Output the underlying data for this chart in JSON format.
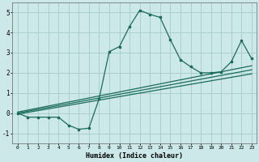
{
  "xlabel": "Humidex (Indice chaleur)",
  "ylabel": "",
  "bg_color": "#cce8e8",
  "grid_color": "#aacece",
  "line_color": "#1a6b5a",
  "xlim": [
    -0.5,
    23.5
  ],
  "ylim": [
    -1.5,
    5.5
  ],
  "xticks": [
    0,
    1,
    2,
    3,
    4,
    5,
    6,
    7,
    8,
    9,
    10,
    11,
    12,
    13,
    14,
    15,
    16,
    17,
    18,
    19,
    20,
    21,
    22,
    23
  ],
  "yticks": [
    -1,
    0,
    1,
    2,
    3,
    4,
    5
  ],
  "main_x": [
    0,
    1,
    2,
    3,
    4,
    5,
    6,
    7,
    8,
    9,
    10,
    11,
    12,
    13,
    14,
    15,
    16,
    17,
    18,
    19,
    20,
    21,
    22,
    23
  ],
  "main_y": [
    0.0,
    -0.2,
    -0.2,
    -0.2,
    -0.2,
    -0.6,
    -0.8,
    -0.75,
    0.7,
    3.05,
    3.3,
    4.3,
    5.1,
    4.9,
    4.75,
    3.65,
    2.65,
    2.3,
    2.0,
    2.0,
    2.05,
    2.55,
    3.6,
    2.7
  ],
  "line2_x": [
    0,
    23
  ],
  "line2_y": [
    0.05,
    2.35
  ],
  "line3_x": [
    0,
    23
  ],
  "line3_y": [
    0.0,
    2.15
  ],
  "line4_x": [
    0,
    23
  ],
  "line4_y": [
    -0.05,
    1.95
  ]
}
